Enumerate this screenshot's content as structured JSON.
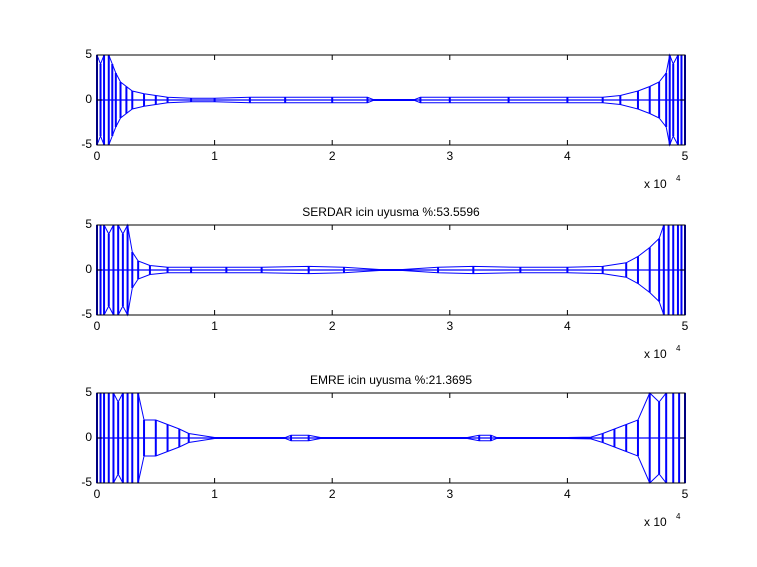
{
  "chart_data": [
    {
      "type": "envelope",
      "color": "#0000ff",
      "x_multiplier": "x 10",
      "x_exponent": "4",
      "xlim": [
        0,
        5
      ],
      "ylim": [
        -5,
        5
      ],
      "xticks": [
        0,
        1,
        2,
        3,
        4,
        5
      ],
      "yticks": [
        -5,
        0,
        5
      ],
      "x": [
        0,
        0.03,
        0.06,
        0.1,
        0.13,
        0.16,
        0.2,
        0.25,
        0.3,
        0.4,
        0.5,
        0.6,
        0.8,
        1,
        1.3,
        1.6,
        2,
        2.3,
        2.35,
        2.7,
        2.75,
        3,
        3.5,
        4,
        4.3,
        4.45,
        4.6,
        4.7,
        4.78,
        4.84,
        4.87,
        4.9,
        4.94,
        4.97,
        5
      ],
      "values": [
        5,
        4,
        5,
        5,
        4,
        3,
        2,
        1.5,
        1,
        0.7,
        0.5,
        0.3,
        0.2,
        0.2,
        0.3,
        0.3,
        0.3,
        0.3,
        0.05,
        0.05,
        0.3,
        0.3,
        0.3,
        0.3,
        0.3,
        0.5,
        1,
        1.5,
        2,
        3,
        5,
        4,
        5,
        5,
        5
      ]
    },
    {
      "type": "envelope",
      "title": "SERDAR icin uyusma %:53.5596",
      "color": "#0000ff",
      "x_multiplier": "x 10",
      "x_exponent": "4",
      "xlim": [
        0,
        5
      ],
      "ylim": [
        -5,
        5
      ],
      "xticks": [
        0,
        1,
        2,
        3,
        4,
        5
      ],
      "yticks": [
        -5,
        0,
        5
      ],
      "x": [
        0,
        0.03,
        0.06,
        0.1,
        0.14,
        0.18,
        0.22,
        0.26,
        0.3,
        0.35,
        0.45,
        0.6,
        0.8,
        1.1,
        1.4,
        1.8,
        2.1,
        2.4,
        2.6,
        2.9,
        3.2,
        3.6,
        4,
        4.3,
        4.5,
        4.6,
        4.7,
        4.78,
        4.82,
        4.86,
        4.9,
        4.94,
        4.97,
        5
      ],
      "values": [
        5,
        5,
        5,
        4,
        5,
        5,
        4,
        5,
        2,
        1,
        0.5,
        0.3,
        0.3,
        0.3,
        0.3,
        0.4,
        0.3,
        0.05,
        0.05,
        0.3,
        0.4,
        0.3,
        0.3,
        0.4,
        0.8,
        1.5,
        2.5,
        3.5,
        5,
        5,
        5,
        5,
        5,
        5
      ]
    },
    {
      "type": "envelope",
      "title": "EMRE icin uyusma %:21.3695",
      "color": "#0000ff",
      "x_multiplier": "x 10",
      "x_exponent": "4",
      "xlim": [
        0,
        5
      ],
      "ylim": [
        -5,
        5
      ],
      "xticks": [
        0,
        1,
        2,
        3,
        4,
        5
      ],
      "yticks": [
        -5,
        0,
        5
      ],
      "x": [
        0,
        0.03,
        0.06,
        0.1,
        0.14,
        0.18,
        0.22,
        0.26,
        0.3,
        0.35,
        0.4,
        0.5,
        0.6,
        0.7,
        0.78,
        1,
        1.6,
        1.65,
        1.8,
        1.9,
        2.5,
        3.15,
        3.25,
        3.35,
        3.4,
        4,
        4.2,
        4.3,
        4.4,
        4.5,
        4.6,
        4.7,
        4.78,
        4.84,
        4.9,
        4.95,
        5
      ],
      "values": [
        5,
        5,
        5,
        5,
        5,
        4,
        5,
        5,
        5,
        5,
        2,
        2,
        1.5,
        1,
        0.5,
        0.05,
        0.05,
        0.3,
        0.3,
        0.05,
        0.05,
        0.05,
        0.3,
        0.3,
        0.05,
        0.05,
        0.1,
        0.5,
        1,
        1.5,
        2,
        5,
        4,
        5,
        5,
        5,
        5
      ]
    }
  ]
}
